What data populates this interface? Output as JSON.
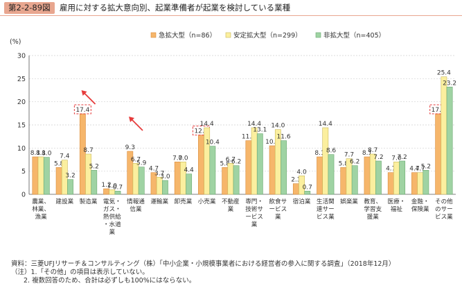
{
  "figure_label": "第2-2-89図",
  "title": "雇用に対する拡大意向別、起業準備者が起業を検討している業種",
  "notes": {
    "source": "資料：三菱UFJリサーチ＆コンサルティング（株）「中小企業・小規模事業者における経営者の参入に関する調査」（2018年12月）",
    "note1": "（注）1.「その他」の項目は表示していない。",
    "note2": "2. 複数回答のため、合計は必ずしも100%にはならない。"
  },
  "colors": {
    "series1": "#f6b66b",
    "series2": "#fbef9f",
    "series3": "#9fd3a3",
    "highlight": "#e63b3b",
    "arrow": "#e63b3b"
  },
  "chart_data": {
    "type": "bar",
    "ylabel": "(%)",
    "ylim": [
      0,
      30
    ],
    "yticks": [
      0,
      5,
      10,
      15,
      20,
      25,
      30
    ],
    "grid": true,
    "legend_position": "top-center",
    "categories": [
      "農業、林業、漁業",
      "建設業",
      "製造業",
      "電気・ガス・熱供給・水道業",
      "情報通信業",
      "運輸業",
      "卸売業",
      "小売業",
      "不動産業",
      "専門・技術サービス業",
      "飲食サービス業",
      "宿泊業",
      "生活関連サービス業",
      "娯楽業",
      "教育、学習支援業",
      "医療・福祉",
      "金融・保険業",
      "その他のサービス業"
    ],
    "category_lines": [
      [
        "農業、",
        "林業、",
        "漁業"
      ],
      [
        "建設業"
      ],
      [
        "製造業"
      ],
      [
        "電気・",
        "ガス・",
        "熱供給",
        "・水道",
        "業"
      ],
      [
        "情報通",
        "信業"
      ],
      [
        "運輸業"
      ],
      [
        "卸売業"
      ],
      [
        "小売業"
      ],
      [
        "不動産",
        "業"
      ],
      [
        "専門・",
        "技術サ",
        "ービス",
        "業"
      ],
      [
        "飲食サ",
        "ービス",
        "業"
      ],
      [
        "宿泊業"
      ],
      [
        "生活関",
        "連サー",
        "ビス業"
      ],
      [
        "娯楽業"
      ],
      [
        "教育、",
        "学習支",
        "援業"
      ],
      [
        "医療・",
        "福祉"
      ],
      [
        "金融・",
        "保険業"
      ],
      [
        "その他",
        "のサー",
        "ビス業"
      ]
    ],
    "series": [
      {
        "name": "急拡大型（n=86）",
        "values": [
          8.1,
          5.8,
          17.4,
          1.2,
          9.3,
          4.7,
          7.0,
          12.8,
          5.8,
          11.6,
          10.5,
          2.3,
          8.1,
          5.8,
          8.1,
          4.7,
          4.7,
          17.4
        ]
      },
      {
        "name": "安定拡大型（n=299）",
        "values": [
          8.1,
          7.4,
          8.7,
          1.0,
          6.7,
          3.7,
          7.0,
          14.4,
          6.7,
          14.4,
          14.0,
          4.0,
          14.4,
          7.7,
          8.7,
          7.0,
          4.7,
          25.4
        ]
      },
      {
        "name": "非拡大型（n=405）",
        "values": [
          8.0,
          3.2,
          5.2,
          0.7,
          5.9,
          3.0,
          4.4,
          10.4,
          6.2,
          13.1,
          11.6,
          0.7,
          8.6,
          6.2,
          7.2,
          7.2,
          5.2,
          23.2
        ]
      }
    ],
    "highlighted": [
      {
        "series": 0,
        "category": 2
      },
      {
        "series": 0,
        "category": 7
      },
      {
        "series": 0,
        "category": 17
      }
    ],
    "arrows_at_categories": [
      2,
      4
    ]
  }
}
